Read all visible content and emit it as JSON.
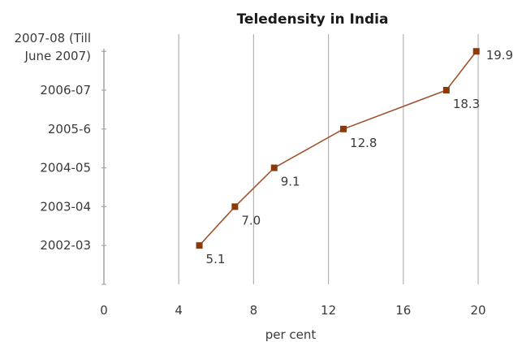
{
  "chart_data": {
    "type": "line",
    "title": "Teledensity in India",
    "xlabel": "per cent",
    "ylabel": "",
    "xlim": [
      0,
      20
    ],
    "x_ticks": [
      0,
      4,
      8,
      12,
      16,
      20
    ],
    "x_tick_labels": [
      "0",
      "4",
      "8",
      "12",
      "16",
      "20"
    ],
    "categories": [
      "2002-03",
      "2003-04",
      "2004-05",
      "2005-6",
      "2006-07",
      "2007-08 (Till June 2007)"
    ],
    "category_lines": [
      [
        "2002-03"
      ],
      [
        "2003-04"
      ],
      [
        "2004-05"
      ],
      [
        "2005-6"
      ],
      [
        "2006-07"
      ],
      [
        "2007-08 (Till",
        "June 2007)"
      ]
    ],
    "series": [
      {
        "values": [
          5.1,
          7.0,
          9.1,
          12.8,
          18.3,
          19.9
        ],
        "labels": [
          "5.1",
          "7.0",
          "9.1",
          "12.8",
          "18.3",
          "19.9"
        ]
      }
    ],
    "grid": "vertical",
    "legend": "none",
    "colors": {
      "line": "#a0522d",
      "marker": "#8b3a0a",
      "grid": "#b3b3b3",
      "axis": "#a6a6a6"
    }
  }
}
